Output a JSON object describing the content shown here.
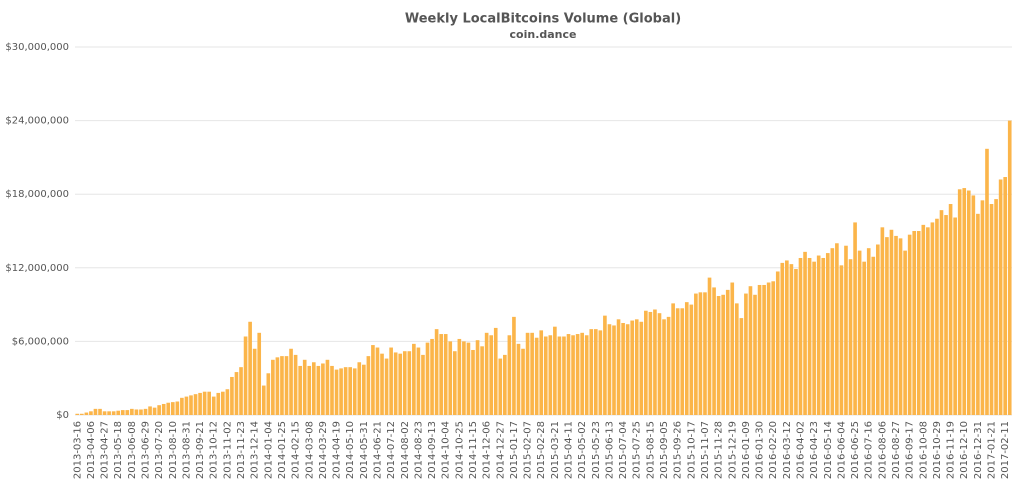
{
  "chart_data": {
    "type": "bar",
    "title": "Weekly LocalBitcoins Volume (Global)",
    "subtitle": "coin.dance",
    "categories": [
      "2013-03-16",
      null,
      null,
      "2013-04-06",
      null,
      null,
      "2013-04-27",
      null,
      null,
      "2013-05-18",
      null,
      null,
      "2013-06-08",
      null,
      null,
      "2013-06-29",
      null,
      null,
      "2013-07-20",
      null,
      null,
      "2013-08-10",
      null,
      null,
      "2013-08-31",
      null,
      null,
      "2013-09-21",
      null,
      null,
      "2013-10-12",
      null,
      null,
      "2013-11-02",
      null,
      null,
      "2013-11-23",
      null,
      null,
      "2013-12-14",
      null,
      null,
      "2014-01-04",
      null,
      null,
      "2014-01-25",
      null,
      null,
      "2014-02-15",
      null,
      null,
      "2014-03-08",
      null,
      null,
      "2014-03-29",
      null,
      null,
      "2014-04-19",
      null,
      null,
      "2014-05-10",
      null,
      null,
      "2014-05-31",
      null,
      null,
      "2014-06-21",
      null,
      null,
      "2014-07-12",
      null,
      null,
      "2014-08-02",
      null,
      null,
      "2014-08-23",
      null,
      null,
      "2014-09-13",
      null,
      null,
      "2014-10-04",
      null,
      null,
      "2014-10-25",
      null,
      null,
      "2014-11-15",
      null,
      null,
      "2014-12-06",
      null,
      null,
      "2014-12-27",
      null,
      null,
      "2015-01-17",
      null,
      null,
      "2015-02-07",
      null,
      null,
      "2015-02-28",
      null,
      null,
      "2015-03-21",
      null,
      null,
      "2015-04-11",
      null,
      null,
      "2015-05-02",
      null,
      null,
      "2015-05-23",
      null,
      null,
      "2015-06-13",
      null,
      null,
      "2015-07-04",
      null,
      null,
      "2015-07-25",
      null,
      null,
      "2015-08-15",
      null,
      null,
      "2015-09-05",
      null,
      null,
      "2015-09-26",
      null,
      null,
      "2015-10-17",
      null,
      null,
      "2015-11-07",
      null,
      null,
      "2015-11-28",
      null,
      null,
      "2015-12-19",
      null,
      null,
      "2016-01-09",
      null,
      null,
      "2016-01-30",
      null,
      null,
      "2016-02-20",
      null,
      null,
      "2016-03-12",
      null,
      null,
      "2016-04-02",
      null,
      null,
      "2016-04-23",
      null,
      null,
      "2016-05-14",
      null,
      null,
      "2016-06-04",
      null,
      null,
      "2016-06-25",
      null,
      null,
      "2016-07-16",
      null,
      null,
      "2016-08-06",
      null,
      null,
      "2016-08-27",
      null,
      null,
      "2016-09-17",
      null,
      null,
      "2016-10-08",
      null,
      null,
      "2016-10-29",
      null,
      null,
      "2016-11-19",
      null,
      null,
      "2016-12-10",
      null,
      null,
      "2016-12-31",
      null,
      null,
      "2017-01-21",
      null,
      null,
      "2017-02-11",
      null
    ],
    "values": [
      100000,
      100000,
      200000,
      300000,
      500000,
      500000,
      300000,
      300000,
      300000,
      350000,
      400000,
      400000,
      500000,
      450000,
      450000,
      500000,
      700000,
      600000,
      800000,
      900000,
      1000000,
      1050000,
      1100000,
      1400000,
      1500000,
      1600000,
      1700000,
      1800000,
      1900000,
      1900000,
      1500000,
      1800000,
      1900000,
      2100000,
      3100000,
      3500000,
      3900000,
      6400000,
      7600000,
      5400000,
      6700000,
      2400000,
      3400000,
      4500000,
      4700000,
      4800000,
      4800000,
      5400000,
      4900000,
      4000000,
      4500000,
      4000000,
      4300000,
      4000000,
      4200000,
      4500000,
      4000000,
      3700000,
      3800000,
      3900000,
      3900000,
      3800000,
      4300000,
      4100000,
      4800000,
      5700000,
      5500000,
      5000000,
      4600000,
      5500000,
      5100000,
      5000000,
      5200000,
      5200000,
      5800000,
      5500000,
      4900000,
      5900000,
      6200000,
      7000000,
      6600000,
      6600000,
      6000000,
      5200000,
      6200000,
      6000000,
      5900000,
      5300000,
      6100000,
      5600000,
      6700000,
      6500000,
      7100000,
      4600000,
      4900000,
      6500000,
      8000000,
      5800000,
      5400000,
      6700000,
      6700000,
      6300000,
      6900000,
      6400000,
      6500000,
      7200000,
      6400000,
      6400000,
      6600000,
      6500000,
      6600000,
      6700000,
      6500000,
      7000000,
      7000000,
      6900000,
      8100000,
      7400000,
      7300000,
      7800000,
      7500000,
      7400000,
      7700000,
      7800000,
      7600000,
      8500000,
      8400000,
      8600000,
      8300000,
      7800000,
      8000000,
      9100000,
      8700000,
      8700000,
      9200000,
      9000000,
      9900000,
      10000000,
      10000000,
      11200000,
      10400000,
      9700000,
      9800000,
      10200000,
      10800000,
      9100000,
      7900000,
      9900000,
      10500000,
      9800000,
      10600000,
      10600000,
      10800000,
      10900000,
      11700000,
      12400000,
      12600000,
      12300000,
      11900000,
      12800000,
      13300000,
      12800000,
      12500000,
      13000000,
      12800000,
      13200000,
      13600000,
      14000000,
      12200000,
      13800000,
      12700000,
      15700000,
      13400000,
      12500000,
      13600000,
      12900000,
      13900000,
      15300000,
      14500000,
      15100000,
      14600000,
      14400000,
      13400000,
      14700000,
      15000000,
      15000000,
      15500000,
      15300000,
      15700000,
      16000000,
      16700000,
      16300000,
      17200000,
      16100000,
      18400000,
      18500000,
      18300000,
      17900000,
      16400000,
      17500000,
      21700000,
      17200000,
      17600000,
      19200000,
      19400000,
      24000000
    ],
    "color": "#fbb54a",
    "ylim": [
      0,
      30000000
    ],
    "yticks": [
      {
        "value": 0,
        "label": "$0"
      },
      {
        "value": 6000000,
        "label": "$6,000,000"
      },
      {
        "value": 12000000,
        "label": "$12,000,000"
      },
      {
        "value": 18000000,
        "label": "$18,000,000"
      },
      {
        "value": 24000000,
        "label": "$24,000,000"
      },
      {
        "value": 30000000,
        "label": "$30,000,000"
      }
    ],
    "grid": true
  }
}
